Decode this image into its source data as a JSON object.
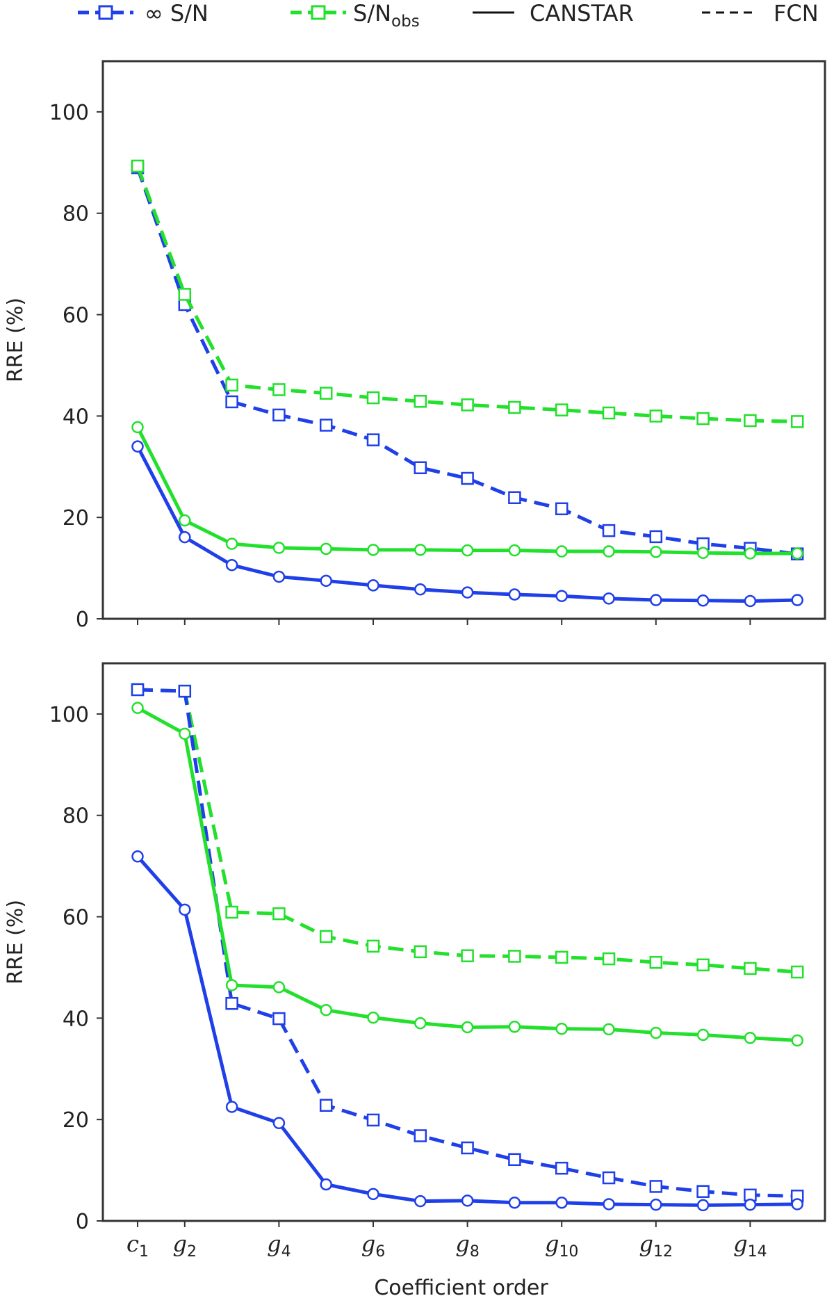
{
  "legend": {
    "items": [
      {
        "label": "∞ S/N",
        "color": "#1f3fe8",
        "linestyle": "dashed",
        "marker": "square"
      },
      {
        "label_main": "S/N",
        "label_sub": "obs",
        "color": "#22e02c",
        "linestyle": "dashed",
        "marker": "square"
      },
      {
        "label": "CANSTAR",
        "color": "#111111",
        "linestyle": "solid",
        "marker": "none"
      },
      {
        "label": "FCN",
        "color": "#111111",
        "linestyle": "dashed",
        "marker": "none"
      }
    ]
  },
  "colors": {
    "inf_sn": "#1f3fe8",
    "sn_obs": "#22e02c",
    "axes": "#333333"
  },
  "chart_data": [
    {
      "type": "line",
      "xlabel": "",
      "ylabel": "RRE (%)",
      "ylim": [
        0,
        110
      ],
      "yticks": [
        0,
        20,
        40,
        60,
        80,
        100
      ],
      "x": [
        1,
        2,
        3,
        4,
        5,
        6,
        7,
        8,
        9,
        10,
        11,
        12,
        13,
        14,
        15
      ],
      "series": [
        {
          "name": "∞ S/N FCN",
          "color": "#1f3fe8",
          "linestyle": "dashed",
          "marker": "square",
          "values": [
            89,
            62,
            42.8,
            40.2,
            38.2,
            35.3,
            29.8,
            27.7,
            23.9,
            21.7,
            17.4,
            16.2,
            14.8,
            13.9,
            12.8
          ]
        },
        {
          "name": "S/Nobs FCN",
          "color": "#22e02c",
          "linestyle": "dashed",
          "marker": "square",
          "values": [
            89.3,
            64,
            46.1,
            45.2,
            44.5,
            43.6,
            42.9,
            42.2,
            41.7,
            41.2,
            40.6,
            40.0,
            39.5,
            39.1,
            38.9
          ]
        },
        {
          "name": "S/Nobs CANSTAR",
          "color": "#22e02c",
          "linestyle": "solid",
          "marker": "circle",
          "values": [
            37.8,
            19.4,
            14.8,
            14.0,
            13.8,
            13.6,
            13.6,
            13.5,
            13.5,
            13.3,
            13.3,
            13.2,
            13.0,
            12.9,
            12.9
          ]
        },
        {
          "name": "∞ S/N CANSTAR",
          "color": "#1f3fe8",
          "linestyle": "solid",
          "marker": "circle",
          "values": [
            34.0,
            16.1,
            10.6,
            8.3,
            7.5,
            6.6,
            5.8,
            5.2,
            4.8,
            4.5,
            4.0,
            3.7,
            3.6,
            3.5,
            3.7
          ]
        }
      ]
    },
    {
      "type": "line",
      "xlabel": "Coefficient order",
      "ylabel": "RRE (%)",
      "ylim": [
        0,
        110
      ],
      "yticks": [
        0,
        20,
        40,
        60,
        80,
        100
      ],
      "x": [
        1,
        2,
        3,
        4,
        5,
        6,
        7,
        8,
        9,
        10,
        11,
        12,
        13,
        14,
        15
      ],
      "xticks": [
        {
          "x": 1,
          "main": "c",
          "sub": "1"
        },
        {
          "x": 2,
          "main": "g",
          "sub": "2"
        },
        {
          "x": 4,
          "main": "g",
          "sub": "4"
        },
        {
          "x": 6,
          "main": "g",
          "sub": "6"
        },
        {
          "x": 8,
          "main": "g",
          "sub": "8"
        },
        {
          "x": 10,
          "main": "g",
          "sub": "10"
        },
        {
          "x": 12,
          "main": "g",
          "sub": "12"
        },
        {
          "x": 14,
          "main": "g",
          "sub": "14"
        }
      ],
      "series": [
        {
          "name": "S/Nobs FCN",
          "color": "#22e02c",
          "linestyle": "dashed",
          "marker": "square",
          "values": [
            104.8,
            104.5,
            60.9,
            60.6,
            56.1,
            54.2,
            53.1,
            52.3,
            52.2,
            52.0,
            51.7,
            51.0,
            50.5,
            49.8,
            49.1
          ]
        },
        {
          "name": "∞ S/N FCN",
          "color": "#1f3fe8",
          "linestyle": "dashed",
          "marker": "square",
          "values": [
            104.8,
            104.5,
            42.9,
            39.9,
            22.8,
            19.9,
            16.8,
            14.4,
            12.1,
            10.4,
            8.5,
            6.8,
            5.8,
            5.1,
            4.9
          ]
        },
        {
          "name": "S/Nobs CANSTAR",
          "color": "#22e02c",
          "linestyle": "solid",
          "marker": "circle",
          "values": [
            101.2,
            96.1,
            46.5,
            46.1,
            41.6,
            40.1,
            39.0,
            38.2,
            38.3,
            37.9,
            37.8,
            37.1,
            36.7,
            36.1,
            35.6
          ]
        },
        {
          "name": "∞ S/N CANSTAR",
          "color": "#1f3fe8",
          "linestyle": "solid",
          "marker": "circle",
          "values": [
            71.9,
            61.4,
            22.5,
            19.3,
            7.2,
            5.3,
            3.9,
            4.0,
            3.6,
            3.6,
            3.3,
            3.2,
            3.1,
            3.2,
            3.3
          ]
        }
      ]
    }
  ]
}
